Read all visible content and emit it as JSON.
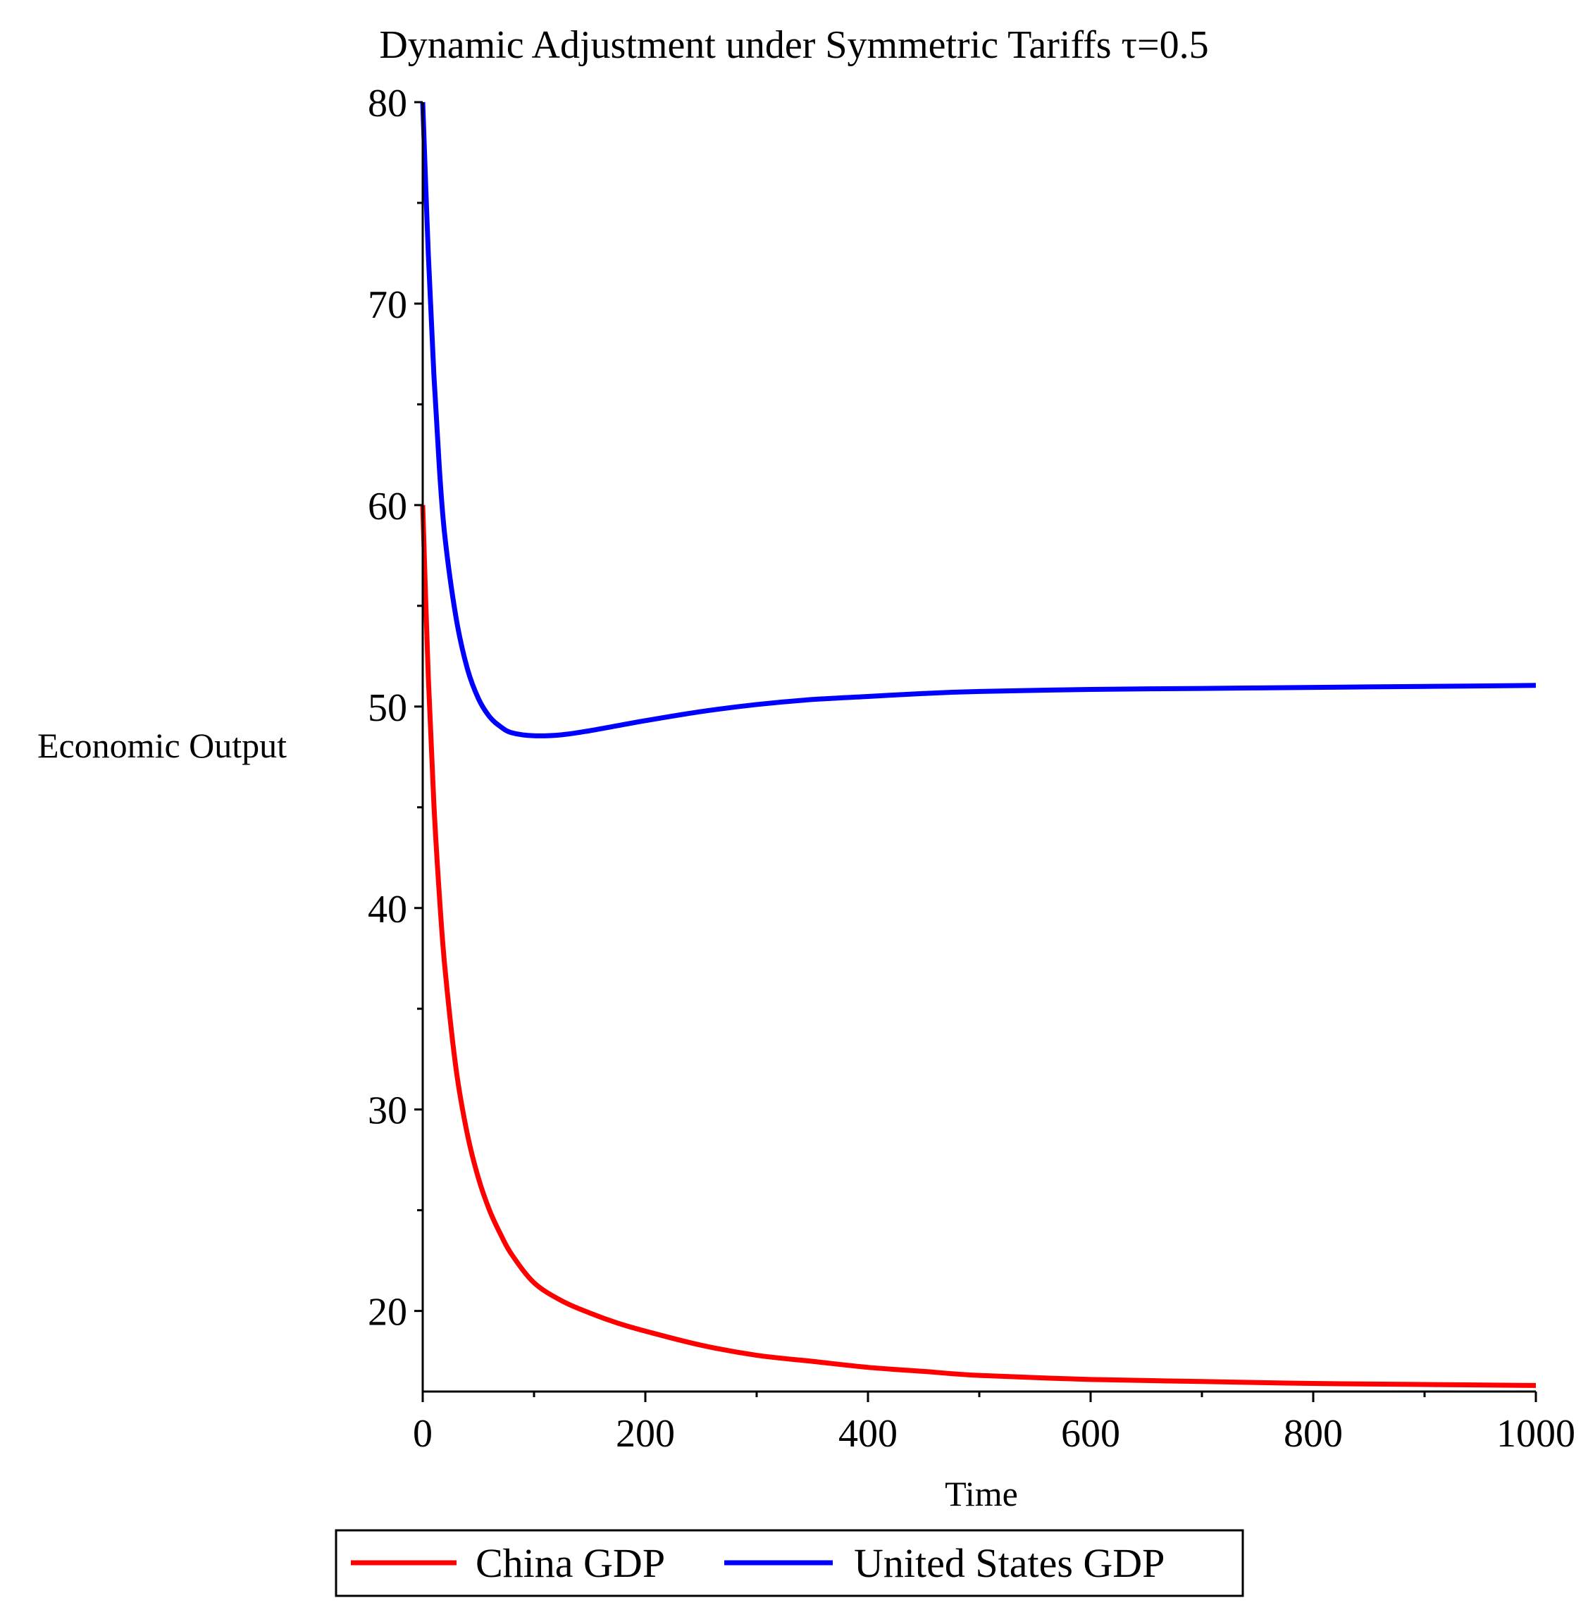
{
  "chart_data": {
    "type": "line",
    "title": "Dynamic Adjustment under Symmetric Tariffs τ=0.5",
    "xlabel": "Time",
    "ylabel": "Economic Output",
    "xlim": [
      0,
      1000
    ],
    "ylim": [
      16,
      80
    ],
    "x_ticks": [
      0,
      200,
      400,
      600,
      800,
      1000
    ],
    "y_ticks": [
      20,
      30,
      40,
      50,
      60,
      70,
      80
    ],
    "grid": false,
    "legend_position": "bottom",
    "x": [
      0,
      5,
      10,
      15,
      20,
      30,
      40,
      50,
      60,
      70,
      80,
      100,
      125,
      150,
      175,
      200,
      250,
      300,
      350,
      400,
      450,
      500,
      600,
      700,
      800,
      900,
      1000
    ],
    "series": [
      {
        "name": "China GDP",
        "color": "#ff0000",
        "values": [
          60,
          51.5,
          45.2,
          40.6,
          37.0,
          32.0,
          28.8,
          26.6,
          25.0,
          23.8,
          22.8,
          21.4,
          20.5,
          19.9,
          19.4,
          19.0,
          18.3,
          17.8,
          17.5,
          17.2,
          17.0,
          16.8,
          16.6,
          16.5,
          16.4,
          16.35,
          16.3
        ]
      },
      {
        "name": "United States GDP",
        "color": "#0000ff",
        "values": [
          80,
          72.5,
          66.5,
          61.8,
          58.4,
          54.4,
          51.9,
          50.4,
          49.5,
          49.0,
          48.7,
          48.55,
          48.6,
          48.8,
          49.05,
          49.3,
          49.75,
          50.1,
          50.35,
          50.5,
          50.65,
          50.75,
          50.85,
          50.9,
          50.95,
          51.0,
          51.05
        ]
      }
    ]
  }
}
